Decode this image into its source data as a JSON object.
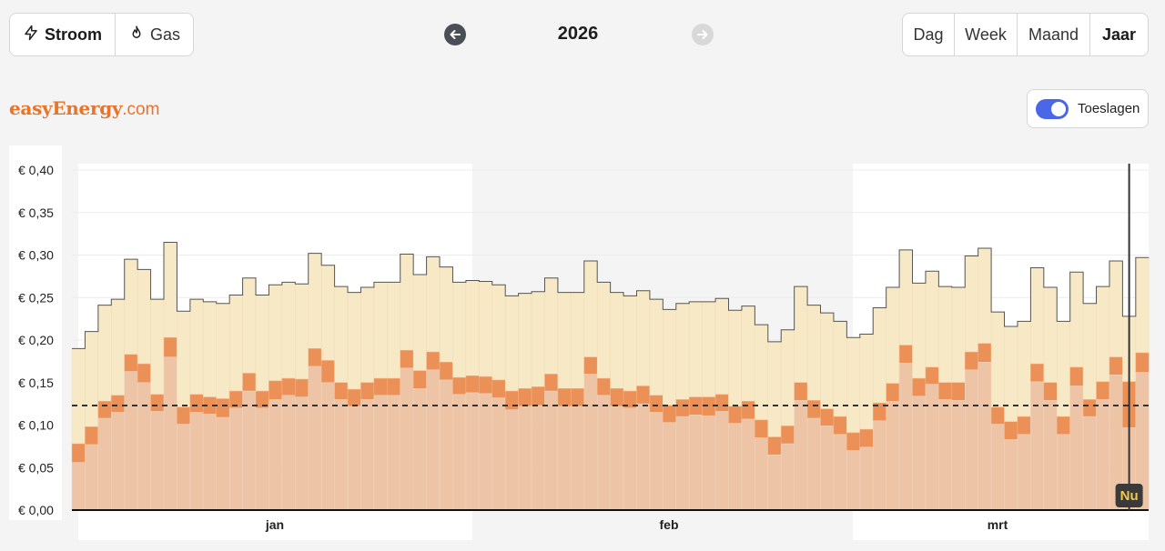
{
  "energy_toggle": {
    "items": [
      {
        "label": "Stroom",
        "icon": "bolt-icon",
        "active": true
      },
      {
        "label": "Gas",
        "icon": "flame-icon",
        "active": false
      }
    ]
  },
  "period_nav": {
    "year": "2026"
  },
  "period_toggle": {
    "items": [
      {
        "label": "Dag",
        "active": false
      },
      {
        "label": "Week",
        "active": false
      },
      {
        "label": "Maand",
        "active": false
      },
      {
        "label": "Jaar",
        "active": true
      }
    ]
  },
  "brand": {
    "name_part": "easyEnergy",
    "domain_part": ".com"
  },
  "toeslagen": {
    "label": "Toeslagen",
    "on": true
  },
  "chart_data": {
    "type": "bar",
    "title": "",
    "xlabel": "",
    "ylabel": "",
    "ylim": [
      0,
      0.4
    ],
    "y_ticks": [
      "€ 0,40",
      "€ 0,35",
      "€ 0,30",
      "€ 0,25",
      "€ 0,20",
      "€ 0,15",
      "€ 0,10",
      "€ 0,05",
      "€ 0,00"
    ],
    "y_tick_values": [
      0.4,
      0.35,
      0.3,
      0.25,
      0.2,
      0.15,
      0.1,
      0.05,
      0.0
    ],
    "month_labels": [
      "jan",
      "feb",
      "mrt"
    ],
    "month_start_day": [
      1,
      32,
      60
    ],
    "days": 82,
    "average": 0.123,
    "now_day": 81,
    "now_label": "Nu",
    "colors": {
      "total_fill": "#f7e8c6",
      "total_line": "#555555",
      "price_dark": "#eb9157",
      "price_light": "#edc5a6",
      "average_line": "#333333",
      "now_line": "#333333",
      "now_badge": "#3a3a3a",
      "now_text": "#f2c94c"
    },
    "series": [
      {
        "name": "",
        "values": [
          0.078,
          0.098,
          0.128,
          0.135,
          0.183,
          0.172,
          0.136,
          0.203,
          0.121,
          0.136,
          0.133,
          0.131,
          0.14,
          0.161,
          0.14,
          0.152,
          0.155,
          0.154,
          0.19,
          0.176,
          0.15,
          0.142,
          0.15,
          0.155,
          0.155,
          0.188,
          0.164,
          0.186,
          0.174,
          0.156,
          0.158,
          0.157,
          0.153,
          0.14,
          0.143,
          0.145,
          0.16,
          0.143,
          0.143,
          0.18,
          0.155,
          0.143,
          0.14,
          0.146,
          0.135,
          0.123,
          0.13,
          0.133,
          0.133,
          0.136,
          0.122,
          0.128,
          0.106,
          0.086,
          0.099,
          0.15,
          0.129,
          0.119,
          0.11,
          0.091,
          0.095,
          0.126,
          0.149,
          0.194,
          0.155,
          0.168,
          0.15,
          0.15,
          0.186,
          0.196,
          0.121,
          0.104,
          0.11,
          0.172,
          0.15,
          0.11,
          0.168,
          0.13,
          0.151,
          0.18,
          0.151,
          0.185
        ]
      },
      {
        "name": "",
        "values": [
          0.056,
          0.077,
          0.108,
          0.115,
          0.163,
          0.15,
          0.116,
          0.18,
          0.101,
          0.115,
          0.113,
          0.109,
          0.12,
          0.14,
          0.12,
          0.13,
          0.135,
          0.133,
          0.169,
          0.15,
          0.13,
          0.122,
          0.13,
          0.135,
          0.135,
          0.167,
          0.143,
          0.165,
          0.153,
          0.136,
          0.138,
          0.137,
          0.132,
          0.118,
          0.122,
          0.123,
          0.14,
          0.122,
          0.122,
          0.16,
          0.135,
          0.122,
          0.12,
          0.125,
          0.115,
          0.103,
          0.11,
          0.112,
          0.111,
          0.116,
          0.102,
          0.107,
          0.085,
          0.065,
          0.078,
          0.129,
          0.108,
          0.099,
          0.089,
          0.07,
          0.074,
          0.105,
          0.128,
          0.173,
          0.134,
          0.148,
          0.13,
          0.129,
          0.165,
          0.174,
          0.101,
          0.083,
          0.089,
          0.151,
          0.129,
          0.089,
          0.146,
          0.11,
          0.13,
          0.159,
          0.097,
          0.162
        ]
      },
      {
        "name": "",
        "values": [
          0.19,
          0.21,
          0.241,
          0.248,
          0.295,
          0.283,
          0.248,
          0.315,
          0.234,
          0.248,
          0.245,
          0.243,
          0.253,
          0.273,
          0.253,
          0.265,
          0.268,
          0.266,
          0.302,
          0.288,
          0.263,
          0.256,
          0.262,
          0.268,
          0.268,
          0.301,
          0.277,
          0.298,
          0.286,
          0.268,
          0.27,
          0.269,
          0.265,
          0.252,
          0.255,
          0.257,
          0.273,
          0.256,
          0.256,
          0.293,
          0.268,
          0.256,
          0.252,
          0.258,
          0.248,
          0.236,
          0.243,
          0.245,
          0.245,
          0.249,
          0.235,
          0.24,
          0.218,
          0.198,
          0.212,
          0.263,
          0.241,
          0.232,
          0.222,
          0.203,
          0.207,
          0.238,
          0.262,
          0.306,
          0.267,
          0.281,
          0.263,
          0.262,
          0.299,
          0.308,
          0.233,
          0.216,
          0.222,
          0.285,
          0.262,
          0.222,
          0.28,
          0.243,
          0.263,
          0.293,
          0.228,
          0.297
        ]
      }
    ]
  }
}
